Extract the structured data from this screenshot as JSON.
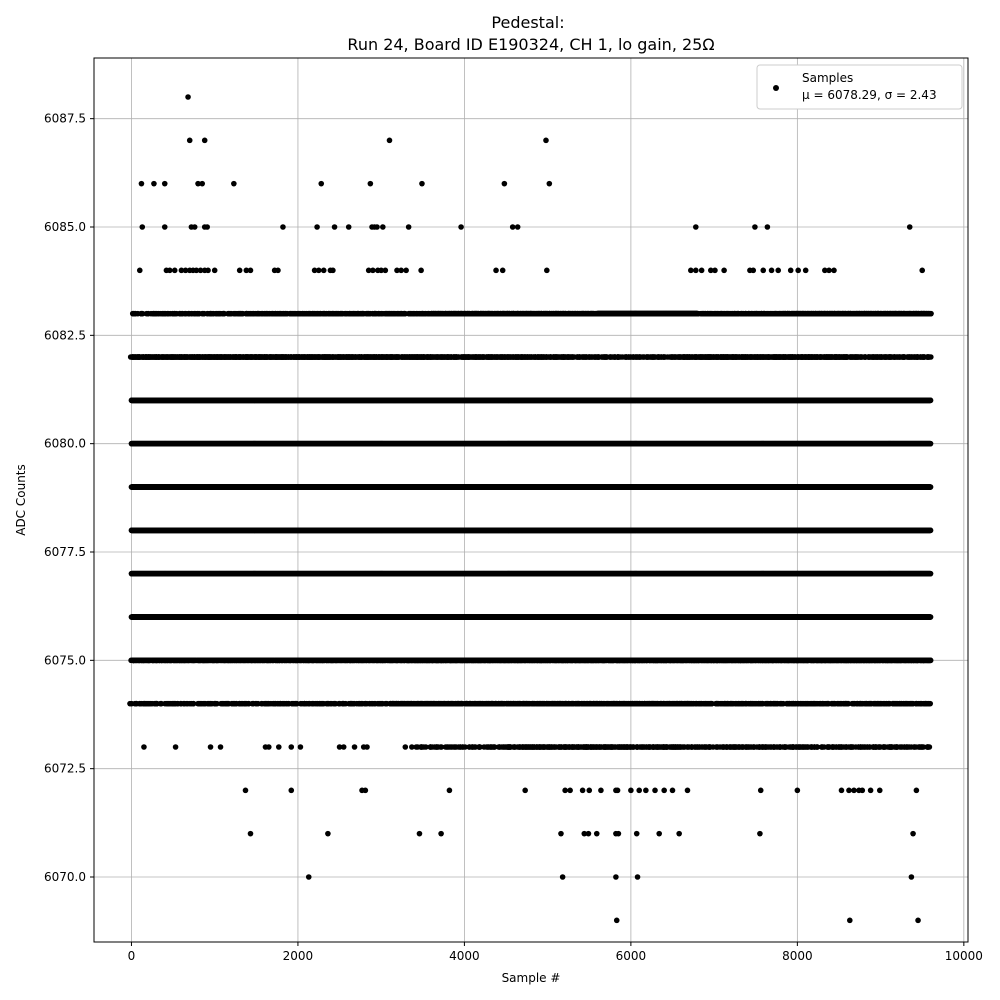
{
  "chart_data": {
    "type": "scatter",
    "title": "Pedestal:",
    "subtitle": "Run 24, Board ID E190324, CH 1, lo gain, 25Ω",
    "xlabel": "Sample #",
    "ylabel": "ADC Counts",
    "xlim": [
      -450,
      10050
    ],
    "ylim": [
      6068.5,
      6088.9
    ],
    "x_ticks": [
      0,
      2000,
      4000,
      6000,
      8000,
      10000
    ],
    "x_tick_labels": [
      "0",
      "2000",
      "4000",
      "6000",
      "8000",
      "10000"
    ],
    "y_ticks": [
      6070.0,
      6072.5,
      6075.0,
      6077.5,
      6080.0,
      6082.5,
      6085.0,
      6087.5
    ],
    "y_tick_labels": [
      "6070.0",
      "6072.5",
      "6075.0",
      "6077.5",
      "6080.0",
      "6082.5",
      "6085.0",
      "6087.5"
    ],
    "grid": true,
    "legend_position": "top-right",
    "marker_color": "#000000",
    "sample_count_range": [
      0,
      9600
    ],
    "series": [
      {
        "name": "Samples",
        "mean": 6078.29,
        "std": 2.43
      }
    ],
    "legend": {
      "line1": "Samples",
      "line2": "μ = 6078.29, σ = 2.43"
    },
    "level_occupancy": [
      {
        "y": 6083,
        "segments": [
          [
            0,
            300,
            12
          ],
          [
            300,
            1300,
            10
          ],
          [
            1300,
            3600,
            7
          ],
          [
            3600,
            5600,
            3
          ],
          [
            5600,
            6800,
            1
          ],
          [
            6800,
            7800,
            5
          ],
          [
            7800,
            9600,
            3
          ]
        ]
      },
      {
        "y": 6082,
        "segments": [
          [
            0,
            3600,
            4
          ],
          [
            3600,
            5300,
            5
          ],
          [
            5300,
            6600,
            8
          ],
          [
            6600,
            8600,
            4
          ],
          [
            8600,
            9600,
            6
          ]
        ]
      },
      {
        "y": 6081,
        "segments": [
          [
            0,
            9600,
            2
          ]
        ]
      },
      {
        "y": 6080,
        "segments": [
          [
            0,
            9600,
            2
          ]
        ]
      },
      {
        "y": 6079,
        "segments": [
          [
            0,
            9600,
            2
          ]
        ]
      },
      {
        "y": 6078,
        "segments": [
          [
            0,
            9600,
            2
          ]
        ]
      },
      {
        "y": 6077,
        "segments": [
          [
            0,
            9600,
            2
          ]
        ]
      },
      {
        "y": 6076,
        "segments": [
          [
            0,
            9600,
            2
          ]
        ]
      },
      {
        "y": 6075,
        "segments": [
          [
            0,
            3300,
            4
          ],
          [
            3300,
            9600,
            3
          ]
        ]
      },
      {
        "y": 6074,
        "segments": [
          [
            0,
            3100,
            12
          ],
          [
            3100,
            6700,
            5
          ],
          [
            6700,
            9600,
            8
          ]
        ]
      },
      {
        "y": 6073,
        "segments": [
          [
            0,
            3400,
            0
          ],
          [
            3400,
            4500,
            15
          ],
          [
            4500,
            6600,
            7
          ],
          [
            6600,
            9600,
            10
          ]
        ]
      }
    ],
    "sparse_points": [
      [
        680,
        6088
      ],
      [
        700,
        6087
      ],
      [
        880,
        6087
      ],
      [
        3100,
        6087
      ],
      [
        4980,
        6087
      ],
      [
        120,
        6086
      ],
      [
        270,
        6086
      ],
      [
        400,
        6086
      ],
      [
        800,
        6086
      ],
      [
        850,
        6086
      ],
      [
        1230,
        6086
      ],
      [
        2280,
        6086
      ],
      [
        2870,
        6086
      ],
      [
        3490,
        6086
      ],
      [
        4480,
        6086
      ],
      [
        5020,
        6086
      ],
      [
        130,
        6085
      ],
      [
        400,
        6085
      ],
      [
        720,
        6085
      ],
      [
        760,
        6085
      ],
      [
        880,
        6085
      ],
      [
        910,
        6085
      ],
      [
        1820,
        6085
      ],
      [
        2230,
        6085
      ],
      [
        2440,
        6085
      ],
      [
        2610,
        6085
      ],
      [
        2890,
        6085
      ],
      [
        2920,
        6085
      ],
      [
        2950,
        6085
      ],
      [
        3020,
        6085
      ],
      [
        3330,
        6085
      ],
      [
        3960,
        6085
      ],
      [
        4580,
        6085
      ],
      [
        4640,
        6085
      ],
      [
        6780,
        6085
      ],
      [
        7490,
        6085
      ],
      [
        7640,
        6085
      ],
      [
        9350,
        6085
      ],
      [
        100,
        6084
      ],
      [
        420,
        6084
      ],
      [
        460,
        6084
      ],
      [
        520,
        6084
      ],
      [
        600,
        6084
      ],
      [
        650,
        6084
      ],
      [
        700,
        6084
      ],
      [
        740,
        6084
      ],
      [
        780,
        6084
      ],
      [
        830,
        6084
      ],
      [
        880,
        6084
      ],
      [
        920,
        6084
      ],
      [
        1000,
        6084
      ],
      [
        1300,
        6084
      ],
      [
        1380,
        6084
      ],
      [
        1430,
        6084
      ],
      [
        1720,
        6084
      ],
      [
        1760,
        6084
      ],
      [
        2200,
        6084
      ],
      [
        2250,
        6084
      ],
      [
        2310,
        6084
      ],
      [
        2390,
        6084
      ],
      [
        2420,
        6084
      ],
      [
        2850,
        6084
      ],
      [
        2900,
        6084
      ],
      [
        2960,
        6084
      ],
      [
        3000,
        6084
      ],
      [
        3050,
        6084
      ],
      [
        3190,
        6084
      ],
      [
        3240,
        6084
      ],
      [
        3300,
        6084
      ],
      [
        3480,
        6084
      ],
      [
        4380,
        6084
      ],
      [
        4460,
        6084
      ],
      [
        4990,
        6084
      ],
      [
        6720,
        6084
      ],
      [
        6780,
        6084
      ],
      [
        6850,
        6084
      ],
      [
        6960,
        6084
      ],
      [
        7010,
        6084
      ],
      [
        7120,
        6084
      ],
      [
        7430,
        6084
      ],
      [
        7470,
        6084
      ],
      [
        7590,
        6084
      ],
      [
        7690,
        6084
      ],
      [
        7770,
        6084
      ],
      [
        7920,
        6084
      ],
      [
        8010,
        6084
      ],
      [
        8100,
        6084
      ],
      [
        8330,
        6084
      ],
      [
        8380,
        6084
      ],
      [
        8440,
        6084
      ],
      [
        9500,
        6084
      ],
      [
        150,
        6073
      ],
      [
        530,
        6073
      ],
      [
        950,
        6073
      ],
      [
        1070,
        6073
      ],
      [
        1610,
        6073
      ],
      [
        1650,
        6073
      ],
      [
        1770,
        6073
      ],
      [
        1920,
        6073
      ],
      [
        2030,
        6073
      ],
      [
        2500,
        6073
      ],
      [
        2550,
        6073
      ],
      [
        2680,
        6073
      ],
      [
        2790,
        6073
      ],
      [
        2830,
        6073
      ],
      [
        3290,
        6073
      ],
      [
        1370,
        6072
      ],
      [
        1920,
        6072
      ],
      [
        2770,
        6072
      ],
      [
        2810,
        6072
      ],
      [
        3820,
        6072
      ],
      [
        4730,
        6072
      ],
      [
        5210,
        6072
      ],
      [
        5270,
        6072
      ],
      [
        5420,
        6072
      ],
      [
        5500,
        6072
      ],
      [
        5640,
        6072
      ],
      [
        5820,
        6072
      ],
      [
        5840,
        6072
      ],
      [
        6000,
        6072
      ],
      [
        6100,
        6072
      ],
      [
        6180,
        6072
      ],
      [
        6290,
        6072
      ],
      [
        6400,
        6072
      ],
      [
        6500,
        6072
      ],
      [
        6680,
        6072
      ],
      [
        7560,
        6072
      ],
      [
        8000,
        6072
      ],
      [
        8530,
        6072
      ],
      [
        8620,
        6072
      ],
      [
        8680,
        6072
      ],
      [
        8740,
        6072
      ],
      [
        8780,
        6072
      ],
      [
        8880,
        6072
      ],
      [
        8990,
        6072
      ],
      [
        9430,
        6072
      ],
      [
        1430,
        6071
      ],
      [
        2360,
        6071
      ],
      [
        3460,
        6071
      ],
      [
        3720,
        6071
      ],
      [
        5160,
        6071
      ],
      [
        5440,
        6071
      ],
      [
        5490,
        6071
      ],
      [
        5590,
        6071
      ],
      [
        5820,
        6071
      ],
      [
        5850,
        6071
      ],
      [
        6070,
        6071
      ],
      [
        6340,
        6071
      ],
      [
        6580,
        6071
      ],
      [
        7550,
        6071
      ],
      [
        9390,
        6071
      ],
      [
        2130,
        6070
      ],
      [
        5180,
        6070
      ],
      [
        5820,
        6070
      ],
      [
        6080,
        6070
      ],
      [
        9370,
        6070
      ],
      [
        5830,
        6069
      ],
      [
        8630,
        6069
      ],
      [
        9450,
        6069
      ]
    ]
  }
}
